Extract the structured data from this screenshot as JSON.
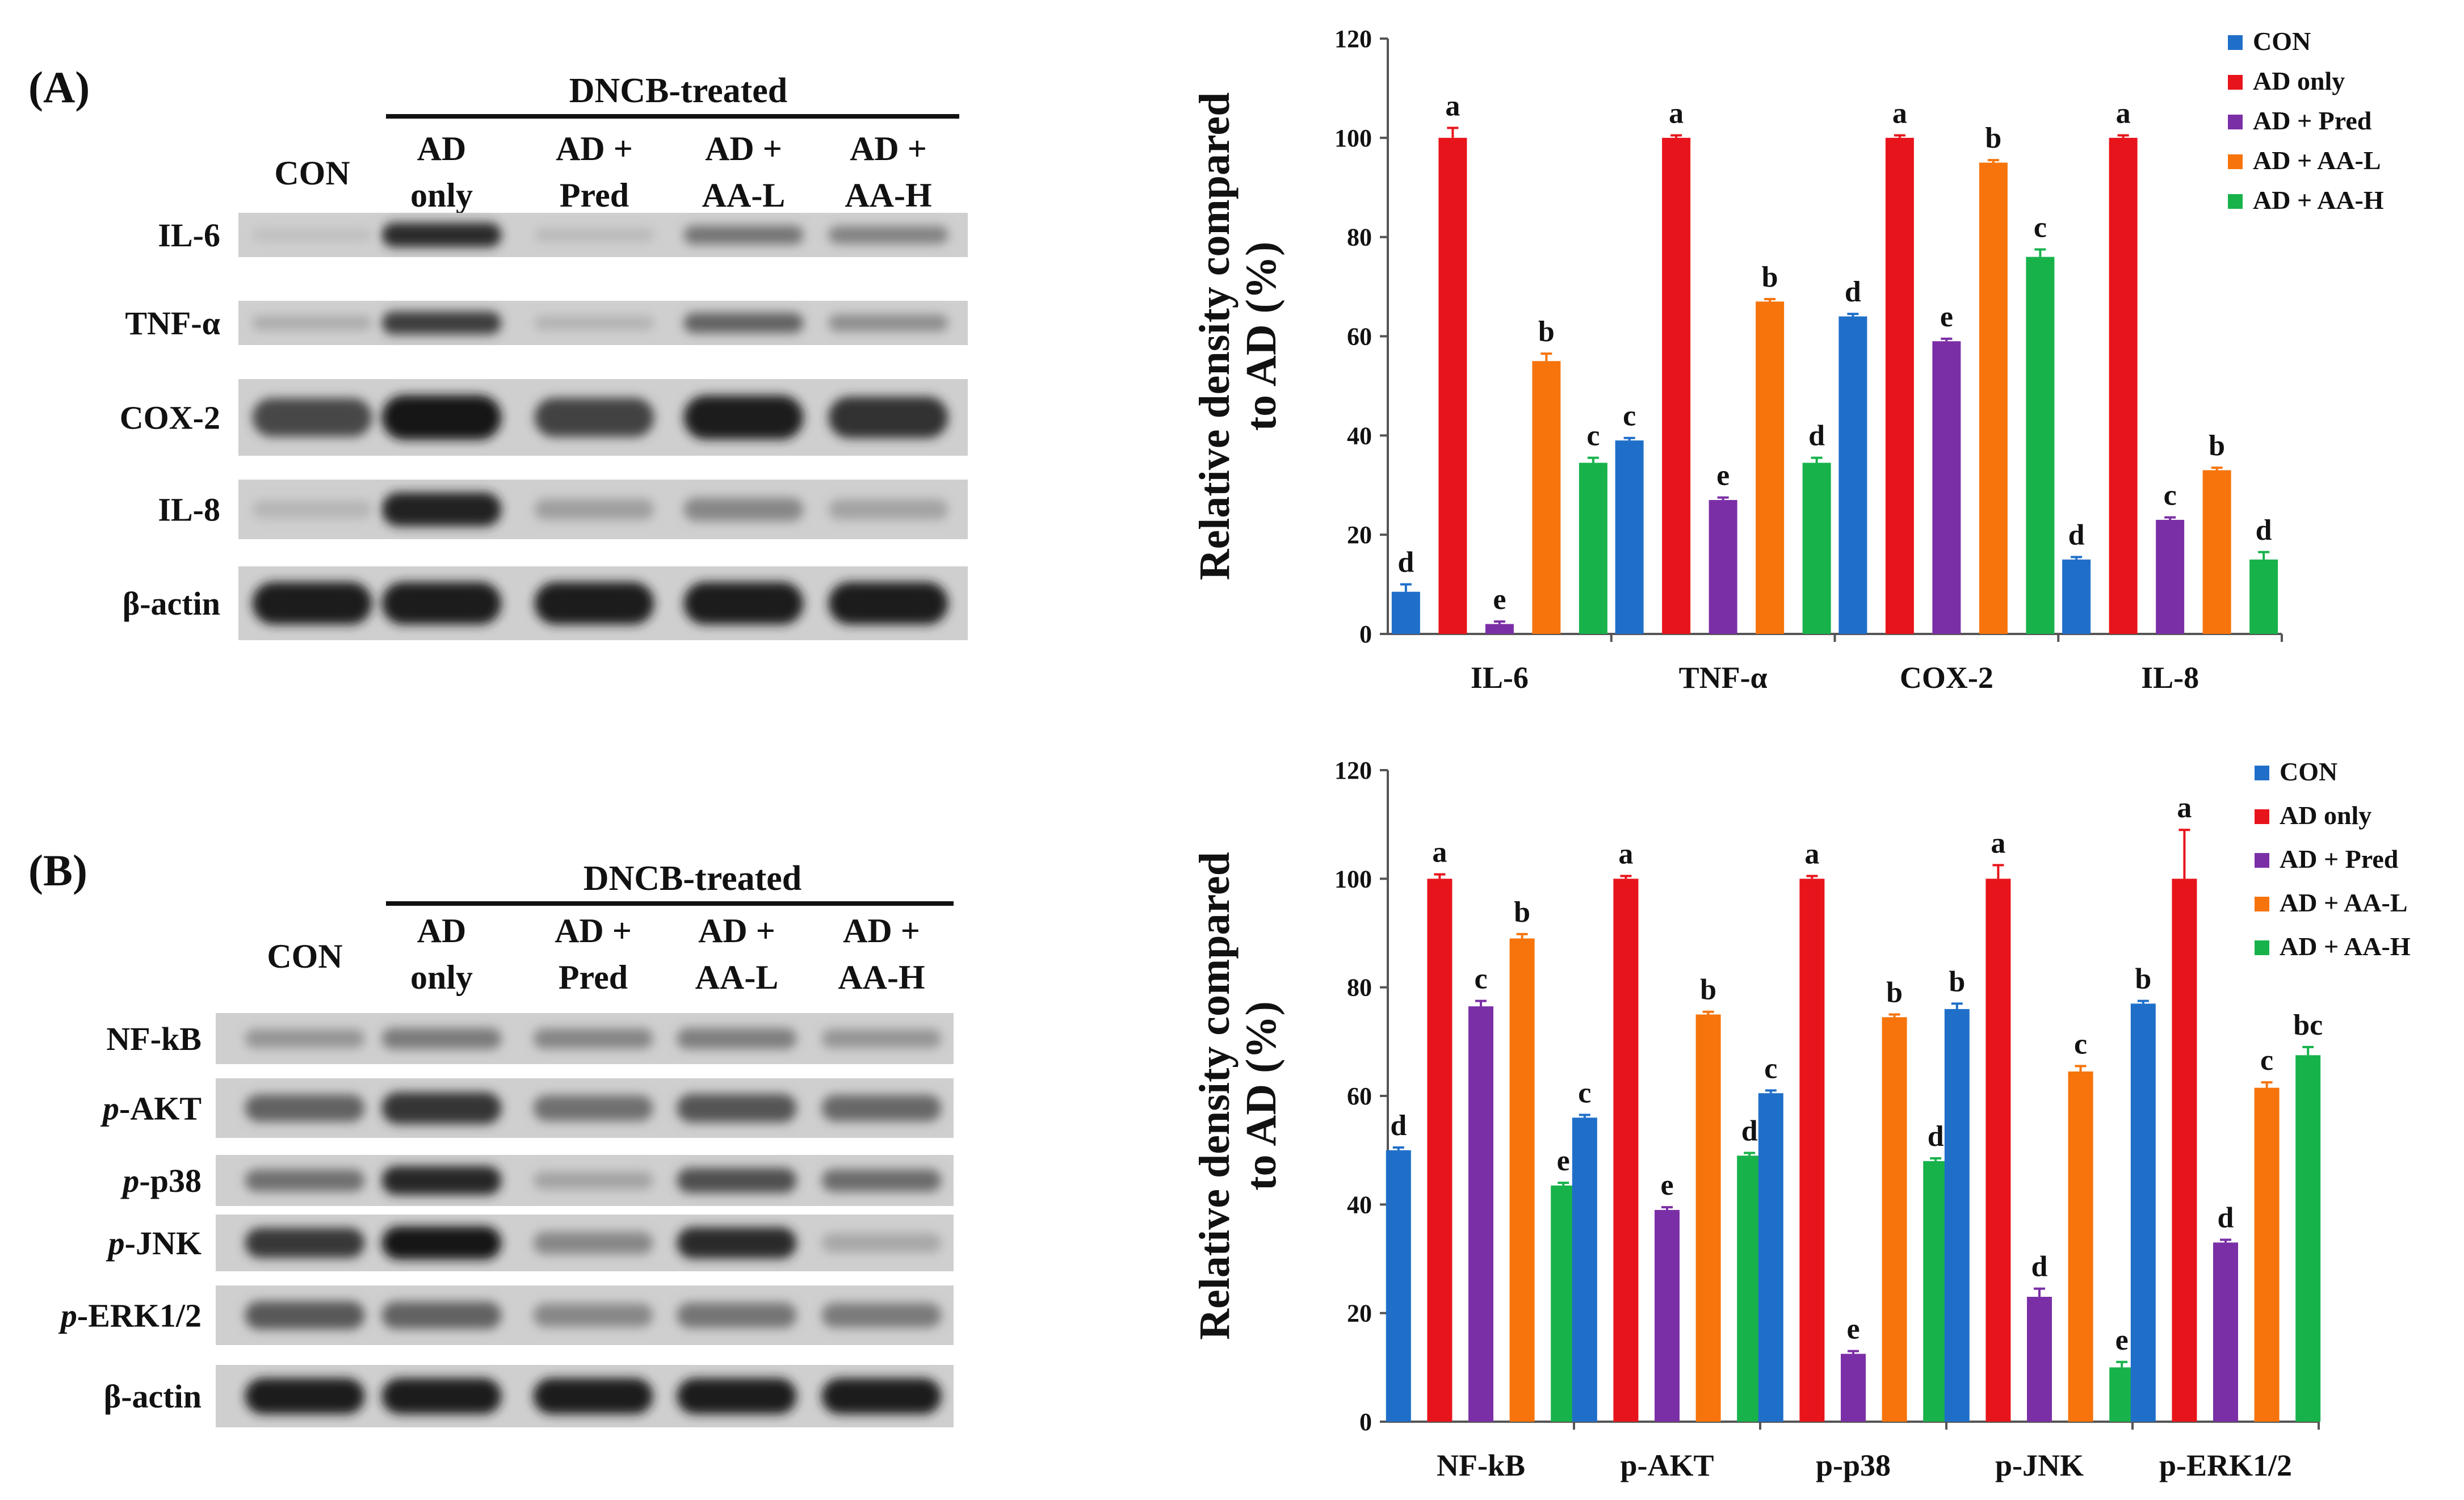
{
  "panel_a": {
    "letter": "(A)",
    "treatment_header": "DNCB-treated",
    "lanes": [
      [
        "CON"
      ],
      [
        "AD",
        "only"
      ],
      [
        "AD +",
        "Pred"
      ],
      [
        "AD +",
        "AA-L"
      ],
      [
        "AD +",
        "AA-H"
      ]
    ],
    "rows": [
      {
        "label": "IL-6",
        "band": [
          0.05,
          0.85,
          0.08,
          0.45,
          0.38
        ]
      },
      {
        "label": "TNF-α",
        "band": [
          0.15,
          0.75,
          0.12,
          0.55,
          0.32
        ]
      },
      {
        "label": "COX-2",
        "band": [
          0.7,
          0.95,
          0.72,
          0.92,
          0.82
        ]
      },
      {
        "label": "IL-8",
        "band": [
          0.1,
          0.9,
          0.22,
          0.35,
          0.2
        ]
      },
      {
        "label": "β-actin",
        "band": [
          0.92,
          0.92,
          0.92,
          0.92,
          0.92
        ]
      }
    ]
  },
  "panel_b": {
    "letter": "(B)",
    "treatment_header": "DNCB-treated",
    "lanes": [
      [
        "CON"
      ],
      [
        "AD",
        "only"
      ],
      [
        "AD +",
        "Pred"
      ],
      [
        "AD +",
        "AA-L"
      ],
      [
        "AD +",
        "AA-H"
      ]
    ],
    "rows": [
      {
        "label": "NF-kB",
        "prefix": "",
        "band": [
          0.28,
          0.42,
          0.36,
          0.4,
          0.28
        ]
      },
      {
        "label": "-AKT",
        "prefix": "p",
        "band": [
          0.55,
          0.8,
          0.48,
          0.62,
          0.52
        ]
      },
      {
        "label": "-p38",
        "prefix": "p",
        "band": [
          0.48,
          0.88,
          0.2,
          0.65,
          0.5
        ]
      },
      {
        "label": "-JNK",
        "prefix": "p",
        "band": [
          0.78,
          0.95,
          0.35,
          0.85,
          0.18
        ]
      },
      {
        "label": "-ERK1/2",
        "prefix": "p",
        "band": [
          0.6,
          0.55,
          0.35,
          0.45,
          0.42
        ]
      },
      {
        "label": "β-actin",
        "prefix": "",
        "band": [
          0.92,
          0.92,
          0.92,
          0.92,
          0.92
        ]
      }
    ]
  },
  "chart_data": [
    {
      "type": "bar",
      "title": "",
      "xlabel": "",
      "ylabel": "Relative density compared to AD (%)",
      "ylabel_lines": [
        "Relative density compared",
        "to AD (%)"
      ],
      "ylim": [
        0,
        120
      ],
      "yticks": [
        0,
        20,
        40,
        60,
        80,
        100,
        120
      ],
      "categories": [
        "IL-6",
        "TNF-α",
        "COX-2",
        "IL-8"
      ],
      "legend_position": "top-right",
      "series": [
        {
          "name": "CON",
          "color": "#1f6fc9",
          "values": [
            8.5,
            39,
            64,
            15
          ],
          "errors": [
            1.5,
            0.5,
            0.5,
            0.5
          ],
          "letters": [
            "d",
            "c",
            "d",
            "d"
          ]
        },
        {
          "name": "AD only",
          "color": "#e8141b",
          "values": [
            100,
            100,
            100,
            100
          ],
          "errors": [
            2,
            0.5,
            0.5,
            0.5
          ],
          "letters": [
            "a",
            "a",
            "a",
            "a"
          ]
        },
        {
          "name": "AD + Pred",
          "color": "#7b2fa6",
          "values": [
            2,
            27,
            59,
            23
          ],
          "errors": [
            0.5,
            0.5,
            0.5,
            0.5
          ],
          "letters": [
            "e",
            "e",
            "e",
            "c"
          ]
        },
        {
          "name": "AD + AA-L",
          "color": "#f6740b",
          "values": [
            55,
            67,
            95,
            33
          ],
          "errors": [
            1.5,
            0.5,
            0.5,
            0.5
          ],
          "letters": [
            "b",
            "b",
            "b",
            "b"
          ]
        },
        {
          "name": "AD + AA-H",
          "color": "#18b24b",
          "values": [
            34.5,
            34.5,
            76,
            15
          ],
          "errors": [
            1,
            1,
            1.5,
            1.5
          ],
          "letters": [
            "c",
            "d",
            "c",
            "d"
          ]
        }
      ]
    },
    {
      "type": "bar",
      "title": "",
      "xlabel": "",
      "ylabel": "Relative density compared to AD (%)",
      "ylabel_lines": [
        "Relative density compared",
        "to AD (%)"
      ],
      "ylim": [
        0,
        120
      ],
      "yticks": [
        0,
        20,
        40,
        60,
        80,
        100,
        120
      ],
      "categories": [
        "NF-kB",
        "p-AKT",
        "p-p38",
        "p-JNK",
        "p-ERK1/2"
      ],
      "legend_position": "top-right",
      "series": [
        {
          "name": "CON",
          "color": "#1f6fc9",
          "values": [
            50,
            56,
            60.5,
            76,
            77
          ],
          "errors": [
            0.5,
            0.5,
            0.5,
            1,
            0.5
          ],
          "letters": [
            "d",
            "c",
            "c",
            "b",
            "b"
          ]
        },
        {
          "name": "AD only",
          "color": "#e8141b",
          "values": [
            100,
            100,
            100,
            100,
            100
          ],
          "errors": [
            0.8,
            0.5,
            0.5,
            2.5,
            9
          ],
          "letters": [
            "a",
            "a",
            "a",
            "a",
            "a"
          ]
        },
        {
          "name": "AD + Pred",
          "color": "#7b2fa6",
          "values": [
            76.5,
            39,
            12.5,
            23,
            33
          ],
          "errors": [
            1,
            0.5,
            0.5,
            1.5,
            0.5
          ],
          "letters": [
            "c",
            "e",
            "e",
            "d",
            "d"
          ]
        },
        {
          "name": "AD + AA-L",
          "color": "#f6740b",
          "values": [
            89,
            75,
            74.5,
            64.5,
            61.5
          ],
          "errors": [
            0.8,
            0.5,
            0.5,
            1,
            1
          ],
          "letters": [
            "b",
            "b",
            "b",
            "c",
            "c"
          ]
        },
        {
          "name": "AD + AA-H",
          "color": "#18b24b",
          "values": [
            43.5,
            49,
            48,
            10,
            67.5
          ],
          "errors": [
            0.5,
            0.5,
            0.5,
            1,
            1.5
          ],
          "letters": [
            "e",
            "d",
            "d",
            "e",
            "bc"
          ]
        }
      ]
    }
  ]
}
